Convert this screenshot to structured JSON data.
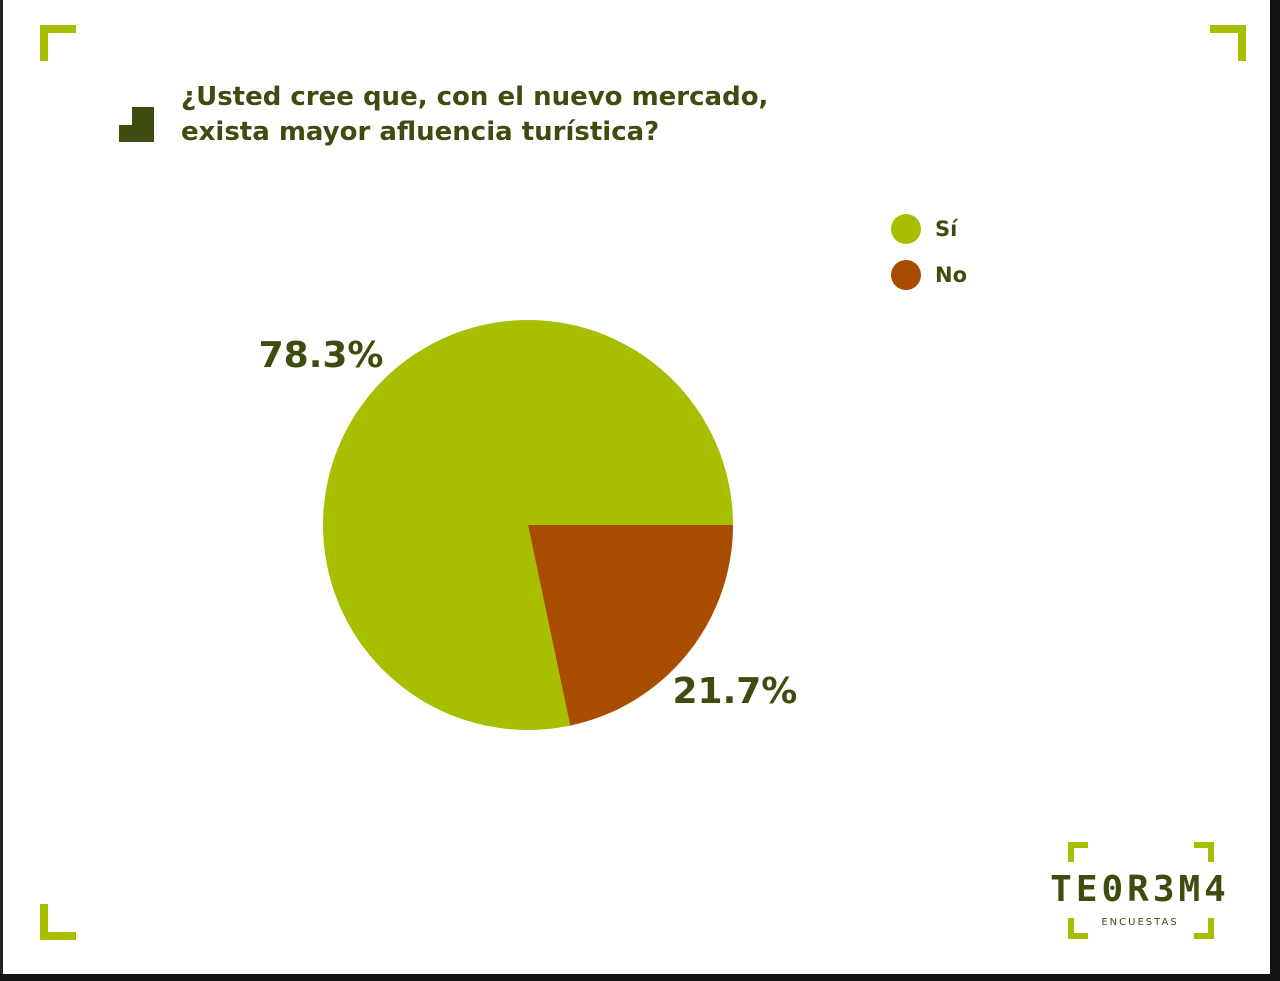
{
  "chart_data": {
    "type": "pie",
    "title": "¿Usted cree que, con el nuevo mercado, exista mayor afluencia turística?",
    "categories": [
      "Sí",
      "No"
    ],
    "values": [
      78.3,
      21.7
    ],
    "value_labels": [
      "78.3%",
      "21.7%"
    ],
    "colors": [
      "#a8bf00",
      "#a84c00"
    ],
    "legend": "top-right"
  },
  "logo": {
    "name": "TE0R3M4",
    "subtitle": "ENCUESTAS"
  }
}
